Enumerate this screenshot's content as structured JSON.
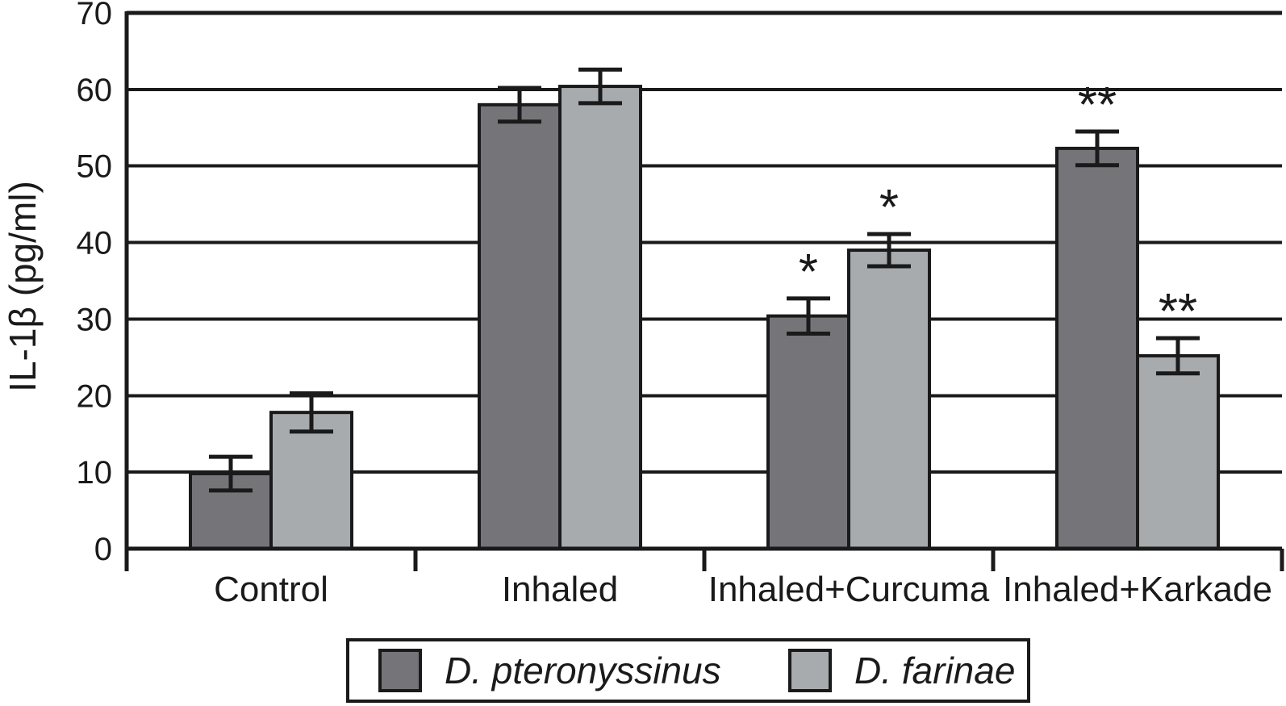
{
  "figure": {
    "ylabel": "IL-1β (pg/ml)"
  },
  "chart_data": {
    "type": "bar",
    "title": "",
    "xlabel": "",
    "ylabel": "IL-1β (pg/ml)",
    "categories": [
      "Control",
      "Inhaled",
      "Inhaled+Curcuma",
      "Inhaled+Karkade"
    ],
    "series": [
      {
        "name": "D. pteronyssinus",
        "color": "#757579",
        "values": [
          9.8,
          58.0,
          30.4,
          52.3
        ],
        "errors": [
          2.2,
          2.2,
          2.3,
          2.2
        ],
        "annotations": [
          "",
          "",
          "*",
          "**"
        ]
      },
      {
        "name": "D. farinae",
        "color": "#a7abae",
        "values": [
          17.8,
          60.4,
          39.0,
          25.2
        ],
        "errors": [
          2.5,
          2.2,
          2.1,
          2.3
        ],
        "annotations": [
          "",
          "",
          "*",
          "**"
        ]
      }
    ],
    "ylim": [
      0,
      70
    ],
    "yticks": [
      0,
      10,
      20,
      30,
      40,
      50,
      60,
      70
    ],
    "grid": true,
    "error_bars": true,
    "legend_position": "bottom",
    "ink_color": "#1a1a1a"
  }
}
